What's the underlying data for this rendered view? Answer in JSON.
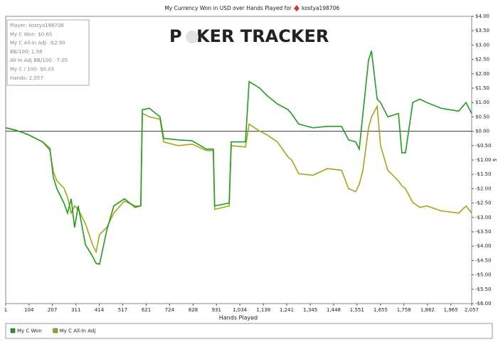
{
  "chart_data": {
    "type": "line",
    "title": "My Currency Won in USD over Hands Played for",
    "player": "kostya198706",
    "watermark": [
      "P",
      "KER TRACKER"
    ],
    "stats_box": [
      "Player: kostya198706",
      "My C Won: $0.65",
      "My C All-In Adj: -$2.90",
      "BB/100: 1.58",
      "All-In Adj BB/100: -7.05",
      "My C / 100: $0.03",
      "Hands: 2,057"
    ],
    "x_label": "Hands Played",
    "y_label": "$",
    "zero_line": true,
    "grid": false,
    "legend": "bottom",
    "x": [
      1,
      39,
      70,
      101,
      133,
      164,
      196,
      211,
      227,
      258,
      274,
      290,
      305,
      321,
      353,
      384,
      400,
      415,
      447,
      478,
      525,
      572,
      597,
      604,
      635,
      682,
      698,
      761,
      823,
      886,
      917,
      923,
      987,
      996,
      1059,
      1075,
      1122,
      1153,
      1200,
      1247,
      1263,
      1294,
      1357,
      1420,
      1483,
      1514,
      1545,
      1561,
      1577,
      1602,
      1615,
      1640,
      1655,
      1687,
      1734,
      1749,
      1765,
      1797,
      1828,
      1859,
      1922,
      2000,
      2032,
      2057
    ],
    "series": [
      {
        "name": "My C Won",
        "color": "#1e9e1e",
        "values": [
          0.12,
          0.05,
          -0.03,
          -0.12,
          -0.25,
          -0.37,
          -0.6,
          -1.6,
          -2.0,
          -2.5,
          -2.85,
          -2.35,
          -3.35,
          -2.6,
          -3.95,
          -4.35,
          -4.6,
          -4.63,
          -3.45,
          -2.6,
          -2.35,
          -2.65,
          -2.6,
          0.75,
          0.8,
          0.5,
          -0.25,
          -0.3,
          -0.33,
          -0.62,
          -0.62,
          -2.6,
          -2.5,
          -0.37,
          -0.37,
          1.73,
          1.5,
          1.25,
          0.95,
          0.75,
          0.6,
          0.25,
          0.12,
          0.17,
          0.17,
          -0.3,
          -0.37,
          -0.62,
          0.6,
          2.48,
          2.8,
          1.12,
          1.0,
          0.5,
          0.62,
          -0.75,
          -0.75,
          1.0,
          1.12,
          1.0,
          0.8,
          0.7,
          1.0,
          0.62
        ]
      },
      {
        "name": "My C All-In Adj",
        "color": "#a5a51a",
        "values": [
          0.12,
          0.05,
          -0.03,
          -0.12,
          -0.25,
          -0.37,
          -0.67,
          -1.4,
          -1.73,
          -1.98,
          -2.3,
          -2.85,
          -2.6,
          -2.72,
          -3.22,
          -3.95,
          -4.2,
          -3.6,
          -3.35,
          -2.85,
          -2.43,
          -2.6,
          -2.6,
          0.62,
          0.5,
          0.42,
          -0.37,
          -0.5,
          -0.45,
          -0.67,
          -0.67,
          -2.72,
          -2.6,
          -0.5,
          -0.55,
          0.25,
          0.0,
          -0.12,
          -0.37,
          -0.9,
          -1.0,
          -1.48,
          -1.53,
          -1.3,
          -1.36,
          -2.0,
          -2.1,
          -1.85,
          -1.36,
          0.12,
          0.5,
          0.87,
          -0.5,
          -1.36,
          -1.73,
          -1.9,
          -2.0,
          -2.48,
          -2.65,
          -2.6,
          -2.77,
          -2.85,
          -2.6,
          -2.85
        ]
      }
    ],
    "xlim": [
      1,
      2057
    ],
    "xticks": [
      1,
      104,
      207,
      311,
      414,
      517,
      621,
      724,
      828,
      931,
      {
        "value": 1034,
        "label": "1,034"
      },
      {
        "value": 1138,
        "label": "1,138"
      },
      {
        "value": 1241,
        "label": "1,241"
      },
      {
        "value": 1345,
        "label": "1,345"
      },
      {
        "value": 1448,
        "label": "1,448"
      },
      {
        "value": 1551,
        "label": "1,551"
      },
      {
        "value": 1655,
        "label": "1,655"
      },
      {
        "value": 1758,
        "label": "1,758"
      },
      {
        "value": 1862,
        "label": "1,862"
      },
      {
        "value": 1965,
        "label": "1,965"
      },
      {
        "value": 2057,
        "label": "2,057"
      }
    ],
    "ylim": [
      -6,
      4
    ],
    "yticks": [
      {
        "value": 4,
        "label": "$4.00"
      },
      {
        "value": 3.5,
        "label": "$3.50"
      },
      {
        "value": 3,
        "label": "$3.00"
      },
      {
        "value": 2.5,
        "label": "$2.50"
      },
      {
        "value": 2,
        "label": "$2.00"
      },
      {
        "value": 1.5,
        "label": "$1.50"
      },
      {
        "value": 1,
        "label": "$1.00"
      },
      {
        "value": 0.5,
        "label": "$0.50"
      },
      {
        "value": 0,
        "label": "$0.00"
      },
      {
        "value": -0.5,
        "label": "-$0.50"
      },
      {
        "value": -1,
        "label": "-$1.00"
      },
      {
        "value": -1.5,
        "label": "-$1.50"
      },
      {
        "value": -2,
        "label": "-$2.00"
      },
      {
        "value": -2.5,
        "label": "-$2.50"
      },
      {
        "value": -3,
        "label": "-$3.00"
      },
      {
        "value": -3.5,
        "label": "-$3.50"
      },
      {
        "value": -4,
        "label": "-$4.00"
      },
      {
        "value": -4.5,
        "label": "-$4.50"
      },
      {
        "value": -5,
        "label": "-$5.00"
      },
      {
        "value": -5.5,
        "label": "-$5.50"
      },
      {
        "value": -6,
        "label": "-$6.00"
      }
    ]
  }
}
